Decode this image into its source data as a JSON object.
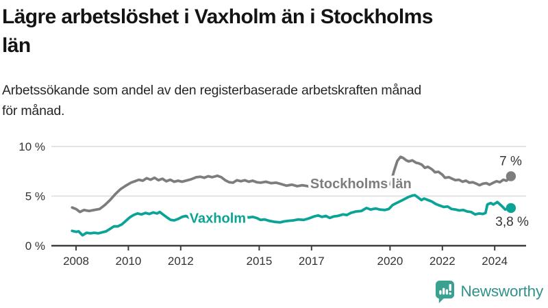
{
  "header": {
    "title": "Lägre arbetslöshet i Vaxholm än i Stockholms län",
    "title_lines": [
      "Lägre arbetslöshet i Vaxholm än i Stockholms",
      "län"
    ],
    "subtitle": "Arbetssökande som andel av den registerbaserade arbetskraften månad för månad.",
    "subtitle_lines": [
      "Arbetssökande som andel av den registerbaserade arbetskraften månad",
      "för månad."
    ]
  },
  "logo": {
    "text": "Newsworthy",
    "icon": "bar-chart-speech-bubble-icon",
    "icon_color": "#3aa08f",
    "text_color": "#31918a"
  },
  "colors": {
    "stockholm_line": "#7d7d7d",
    "vaxholm_line": "#0aa396",
    "grid": "#dcdcdc",
    "axis": "#3c3c3c",
    "tick_text": "#333333",
    "value_label_text": "#333333",
    "title_text": "#141414",
    "subtitle_text": "#262626"
  },
  "chart_data": {
    "type": "line",
    "x_unit": "year (monthly values)",
    "xlim": [
      2007.85,
      2024.62
    ],
    "ylim": [
      0,
      10
    ],
    "grid": "horizontal",
    "legend_position": "inline-labels",
    "yticks": [
      {
        "v": 0,
        "label": "0 %"
      },
      {
        "v": 5,
        "label": "5 %"
      },
      {
        "v": 10,
        "label": "10 %"
      }
    ],
    "xticks": [
      {
        "v": 2008,
        "label": "2008"
      },
      {
        "v": 2010,
        "label": "2010"
      },
      {
        "v": 2012,
        "label": "2012"
      },
      {
        "v": 2015,
        "label": "2015"
      },
      {
        "v": 2017,
        "label": "2017"
      },
      {
        "v": 2020,
        "label": "2020"
      },
      {
        "v": 2022,
        "label": "2022"
      },
      {
        "v": 2024,
        "label": "2024"
      }
    ],
    "series": [
      {
        "name": "Stockholms län",
        "color": "#7d7d7d",
        "label_pos": {
          "t": 2016.95,
          "v": 6.28
        },
        "end_label": {
          "text": "7 %",
          "dx": 16,
          "dy": -16,
          "anchor": "end"
        },
        "points": [
          [
            2007.85,
            3.85
          ],
          [
            2008.0,
            3.7
          ],
          [
            2008.15,
            3.4
          ],
          [
            2008.3,
            3.6
          ],
          [
            2008.5,
            3.5
          ],
          [
            2008.7,
            3.6
          ],
          [
            2008.9,
            3.7
          ],
          [
            2009.1,
            4.1
          ],
          [
            2009.3,
            4.6
          ],
          [
            2009.5,
            5.2
          ],
          [
            2009.7,
            5.7
          ],
          [
            2009.9,
            6.05
          ],
          [
            2010.1,
            6.35
          ],
          [
            2010.25,
            6.5
          ],
          [
            2010.4,
            6.65
          ],
          [
            2010.55,
            6.55
          ],
          [
            2010.7,
            6.8
          ],
          [
            2010.85,
            6.65
          ],
          [
            2011.0,
            6.85
          ],
          [
            2011.15,
            6.6
          ],
          [
            2011.3,
            6.75
          ],
          [
            2011.45,
            6.5
          ],
          [
            2011.6,
            6.65
          ],
          [
            2011.75,
            6.45
          ],
          [
            2011.9,
            6.55
          ],
          [
            2012.05,
            6.45
          ],
          [
            2012.2,
            6.55
          ],
          [
            2012.4,
            6.7
          ],
          [
            2012.6,
            6.9
          ],
          [
            2012.75,
            6.95
          ],
          [
            2012.9,
            6.85
          ],
          [
            2013.05,
            7.0
          ],
          [
            2013.2,
            6.9
          ],
          [
            2013.4,
            7.05
          ],
          [
            2013.55,
            6.9
          ],
          [
            2013.7,
            6.6
          ],
          [
            2013.85,
            6.4
          ],
          [
            2014.0,
            6.35
          ],
          [
            2014.15,
            6.6
          ],
          [
            2014.3,
            6.5
          ],
          [
            2014.45,
            6.6
          ],
          [
            2014.6,
            6.45
          ],
          [
            2014.75,
            6.55
          ],
          [
            2014.9,
            6.4
          ],
          [
            2015.05,
            6.35
          ],
          [
            2015.25,
            6.45
          ],
          [
            2015.45,
            6.3
          ],
          [
            2015.65,
            6.35
          ],
          [
            2015.85,
            6.2
          ],
          [
            2016.05,
            6.05
          ],
          [
            2016.25,
            6.15
          ],
          [
            2016.45,
            6.0
          ],
          [
            2016.65,
            6.1
          ],
          [
            2016.85,
            6.0
          ],
          [
            2017.1,
            5.95
          ],
          [
            2017.35,
            6.0
          ],
          [
            2017.6,
            5.9
          ],
          [
            2017.85,
            5.95
          ],
          [
            2018.1,
            5.85
          ],
          [
            2018.35,
            5.9
          ],
          [
            2018.6,
            5.8
          ],
          [
            2018.85,
            5.85
          ],
          [
            2019.1,
            5.8
          ],
          [
            2019.35,
            5.9
          ],
          [
            2019.6,
            5.85
          ],
          [
            2019.85,
            5.95
          ],
          [
            2020.02,
            6.25
          ],
          [
            2020.15,
            7.5
          ],
          [
            2020.28,
            8.55
          ],
          [
            2020.4,
            8.95
          ],
          [
            2020.5,
            8.85
          ],
          [
            2020.62,
            8.6
          ],
          [
            2020.72,
            8.5
          ],
          [
            2020.85,
            8.6
          ],
          [
            2021.0,
            8.35
          ],
          [
            2021.1,
            8.3
          ],
          [
            2021.22,
            8.15
          ],
          [
            2021.33,
            7.85
          ],
          [
            2021.45,
            7.95
          ],
          [
            2021.6,
            7.7
          ],
          [
            2021.72,
            7.4
          ],
          [
            2021.85,
            7.45
          ],
          [
            2022.0,
            7.15
          ],
          [
            2022.1,
            6.85
          ],
          [
            2022.25,
            6.9
          ],
          [
            2022.37,
            6.75
          ],
          [
            2022.5,
            6.6
          ],
          [
            2022.63,
            6.65
          ],
          [
            2022.77,
            6.45
          ],
          [
            2022.9,
            6.55
          ],
          [
            2023.03,
            6.35
          ],
          [
            2023.16,
            6.4
          ],
          [
            2023.3,
            6.25
          ],
          [
            2023.42,
            6.1
          ],
          [
            2023.55,
            6.25
          ],
          [
            2023.68,
            6.3
          ],
          [
            2023.8,
            6.15
          ],
          [
            2023.95,
            6.35
          ],
          [
            2024.07,
            6.5
          ],
          [
            2024.2,
            6.4
          ],
          [
            2024.33,
            6.65
          ],
          [
            2024.45,
            6.55
          ],
          [
            2024.55,
            6.8
          ],
          [
            2024.62,
            7.0
          ]
        ]
      },
      {
        "name": "Vaxholm",
        "color": "#0aa396",
        "label_pos": {
          "t": 2012.34,
          "v": 2.78
        },
        "end_label": {
          "text": "3,8 %",
          "dx": 26,
          "dy": 26,
          "anchor": "end"
        },
        "points": [
          [
            2007.85,
            1.5
          ],
          [
            2008.0,
            1.4
          ],
          [
            2008.1,
            1.45
          ],
          [
            2008.25,
            1.05
          ],
          [
            2008.4,
            1.3
          ],
          [
            2008.55,
            1.25
          ],
          [
            2008.7,
            1.3
          ],
          [
            2008.85,
            1.25
          ],
          [
            2009.0,
            1.35
          ],
          [
            2009.15,
            1.45
          ],
          [
            2009.3,
            1.7
          ],
          [
            2009.45,
            1.95
          ],
          [
            2009.6,
            1.95
          ],
          [
            2009.75,
            2.15
          ],
          [
            2009.9,
            2.5
          ],
          [
            2010.05,
            2.85
          ],
          [
            2010.2,
            3.1
          ],
          [
            2010.35,
            3.25
          ],
          [
            2010.5,
            3.15
          ],
          [
            2010.65,
            3.3
          ],
          [
            2010.8,
            3.2
          ],
          [
            2010.95,
            3.35
          ],
          [
            2011.1,
            3.25
          ],
          [
            2011.2,
            3.4
          ],
          [
            2011.35,
            3.1
          ],
          [
            2011.5,
            2.8
          ],
          [
            2011.62,
            2.6
          ],
          [
            2011.75,
            2.55
          ],
          [
            2011.9,
            2.7
          ],
          [
            2012.05,
            2.9
          ],
          [
            2012.2,
            3.0
          ],
          [
            2012.35,
            2.8
          ],
          [
            2012.5,
            2.9
          ],
          [
            2012.65,
            2.85
          ],
          [
            2012.8,
            2.95
          ],
          [
            2013.0,
            2.9
          ],
          [
            2013.2,
            2.95
          ],
          [
            2013.4,
            2.85
          ],
          [
            2013.6,
            2.95
          ],
          [
            2013.8,
            2.9
          ],
          [
            2014.0,
            2.95
          ],
          [
            2014.2,
            2.9
          ],
          [
            2014.4,
            2.95
          ],
          [
            2014.6,
            2.85
          ],
          [
            2014.75,
            2.9
          ],
          [
            2014.9,
            2.8
          ],
          [
            2015.05,
            2.6
          ],
          [
            2015.2,
            2.65
          ],
          [
            2015.4,
            2.5
          ],
          [
            2015.6,
            2.4
          ],
          [
            2015.8,
            2.35
          ],
          [
            2015.95,
            2.45
          ],
          [
            2016.1,
            2.5
          ],
          [
            2016.3,
            2.55
          ],
          [
            2016.5,
            2.65
          ],
          [
            2016.7,
            2.6
          ],
          [
            2016.9,
            2.75
          ],
          [
            2017.1,
            2.95
          ],
          [
            2017.25,
            3.05
          ],
          [
            2017.4,
            2.9
          ],
          [
            2017.55,
            3.0
          ],
          [
            2017.7,
            2.8
          ],
          [
            2017.85,
            2.95
          ],
          [
            2018.0,
            3.0
          ],
          [
            2018.2,
            3.15
          ],
          [
            2018.35,
            3.1
          ],
          [
            2018.5,
            3.3
          ],
          [
            2018.7,
            3.45
          ],
          [
            2018.9,
            3.5
          ],
          [
            2019.1,
            3.8
          ],
          [
            2019.25,
            3.65
          ],
          [
            2019.45,
            3.75
          ],
          [
            2019.6,
            3.65
          ],
          [
            2019.8,
            3.6
          ],
          [
            2019.95,
            3.7
          ],
          [
            2020.1,
            4.1
          ],
          [
            2020.25,
            4.3
          ],
          [
            2020.4,
            4.5
          ],
          [
            2020.55,
            4.7
          ],
          [
            2020.7,
            4.9
          ],
          [
            2020.85,
            5.05
          ],
          [
            2020.95,
            5.1
          ],
          [
            2021.1,
            4.8
          ],
          [
            2021.2,
            4.6
          ],
          [
            2021.3,
            4.75
          ],
          [
            2021.45,
            4.6
          ],
          [
            2021.6,
            4.45
          ],
          [
            2021.75,
            4.2
          ],
          [
            2021.9,
            4.05
          ],
          [
            2022.05,
            3.9
          ],
          [
            2022.2,
            3.95
          ],
          [
            2022.35,
            3.7
          ],
          [
            2022.5,
            3.65
          ],
          [
            2022.65,
            3.55
          ],
          [
            2022.8,
            3.6
          ],
          [
            2022.95,
            3.45
          ],
          [
            2023.1,
            3.4
          ],
          [
            2023.25,
            3.15
          ],
          [
            2023.4,
            3.25
          ],
          [
            2023.55,
            3.2
          ],
          [
            2023.65,
            3.3
          ],
          [
            2023.72,
            4.15
          ],
          [
            2023.85,
            4.3
          ],
          [
            2023.95,
            4.15
          ],
          [
            2024.1,
            4.4
          ],
          [
            2024.25,
            4.05
          ],
          [
            2024.4,
            3.65
          ],
          [
            2024.5,
            3.75
          ],
          [
            2024.62,
            3.8
          ]
        ]
      }
    ]
  }
}
